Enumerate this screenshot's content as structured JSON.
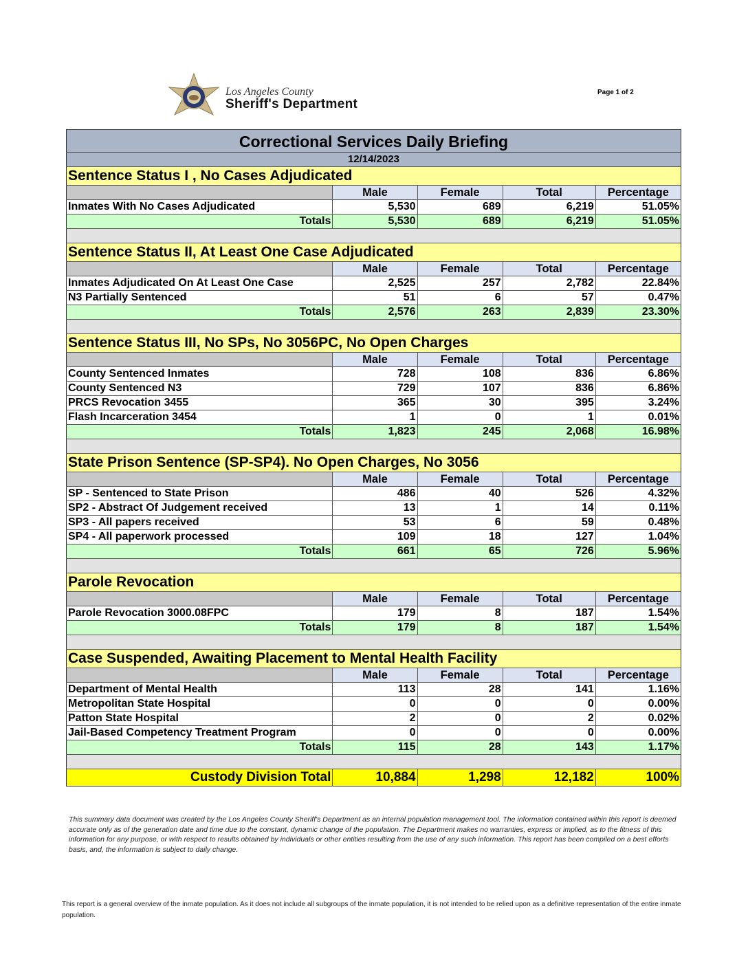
{
  "header": {
    "logo_line1": "Los Angeles County",
    "logo_line2": "Sheriff's Department",
    "page_label": "Page 1 of 2"
  },
  "report": {
    "title": "Correctional Services Daily Briefing",
    "date": "12/14/2023"
  },
  "columns": [
    "Male",
    "Female",
    "Total",
    "Percentage"
  ],
  "totals_label": "Totals",
  "sections": [
    {
      "title": "Sentence Status I , No Cases Adjudicated",
      "rows": [
        {
          "label": "Inmates With No Cases Adjudicated",
          "values": [
            "5,530",
            "689",
            "6,219",
            "51.05%"
          ]
        }
      ],
      "totals": [
        "5,530",
        "689",
        "6,219",
        "51.05%"
      ]
    },
    {
      "title": "Sentence Status II, At Least One Case Adjudicated",
      "rows": [
        {
          "label": "Inmates Adjudicated On At Least One Case",
          "values": [
            "2,525",
            "257",
            "2,782",
            "22.84%"
          ]
        },
        {
          "label": "N3 Partially Sentenced",
          "values": [
            "51",
            "6",
            "57",
            "0.47%"
          ]
        }
      ],
      "totals": [
        "2,576",
        "263",
        "2,839",
        "23.30%"
      ]
    },
    {
      "title": "Sentence Status III, No SPs, No 3056PC, No Open Charges",
      "rows": [
        {
          "label": "County Sentenced Inmates",
          "values": [
            "728",
            "108",
            "836",
            "6.86%"
          ]
        },
        {
          "label": "County Sentenced N3",
          "values": [
            "729",
            "107",
            "836",
            "6.86%"
          ]
        },
        {
          "label": "PRCS Revocation 3455",
          "values": [
            "365",
            "30",
            "395",
            "3.24%"
          ]
        },
        {
          "label": "Flash Incarceration 3454",
          "values": [
            "1",
            "0",
            "1",
            "0.01%"
          ]
        }
      ],
      "totals": [
        "1,823",
        "245",
        "2,068",
        "16.98%"
      ]
    },
    {
      "title": "State Prison Sentence (SP-SP4). No Open Charges, No 3056",
      "rows": [
        {
          "label": "SP - Sentenced to State Prison",
          "values": [
            "486",
            "40",
            "526",
            "4.32%"
          ]
        },
        {
          "label": "SP2 - Abstract Of Judgement received",
          "values": [
            "13",
            "1",
            "14",
            "0.11%"
          ]
        },
        {
          "label": "SP3 - All papers received",
          "values": [
            "53",
            "6",
            "59",
            "0.48%"
          ]
        },
        {
          "label": "SP4 - All paperwork processed",
          "values": [
            "109",
            "18",
            "127",
            "1.04%"
          ]
        }
      ],
      "totals": [
        "661",
        "65",
        "726",
        "5.96%"
      ]
    },
    {
      "title": "Parole Revocation",
      "rows": [
        {
          "label": "Parole Revocation 3000.08FPC",
          "values": [
            "179",
            "8",
            "187",
            "1.54%"
          ]
        }
      ],
      "totals": [
        "179",
        "8",
        "187",
        "1.54%"
      ]
    },
    {
      "title": "Case Suspended, Awaiting Placement to Mental Health Facility",
      "rows": [
        {
          "label": "Department of Mental Health",
          "values": [
            "113",
            "28",
            "141",
            "1.16%"
          ]
        },
        {
          "label": "Metropolitan State Hospital",
          "values": [
            "0",
            "0",
            "0",
            "0.00%"
          ]
        },
        {
          "label": "Patton State Hospital",
          "values": [
            "2",
            "0",
            "2",
            "0.02%"
          ]
        },
        {
          "label": "Jail-Based Competency Treatment Program",
          "values": [
            "0",
            "0",
            "0",
            "0.00%"
          ]
        }
      ],
      "totals": [
        "115",
        "28",
        "143",
        "1.17%"
      ]
    }
  ],
  "grand_total": {
    "label": "Custody Division Total",
    "values": [
      "10,884",
      "1,298",
      "12,182",
      "100%"
    ]
  },
  "disclaimer": "This summary data document was created by the Los Angeles County Sheriff's Department as an internal population management tool.  The information contained within this report is deemed accurate only as of the generation date and time due to the constant, dynamic change of the population.  The Department makes no warranties, express or implied, as to the fitness of this information for any purpose, or with respect to results obtained by individuals or other entities resulting from the use of any such information.  This report has been compiled on a best efforts basis, and, the information is subject to daily change.",
  "note": "This report is a general overview of the inmate population.  As it does not include all subgroups of the inmate population, it is not intended to be relied upon as a definitive representation of the entire inmate population."
}
